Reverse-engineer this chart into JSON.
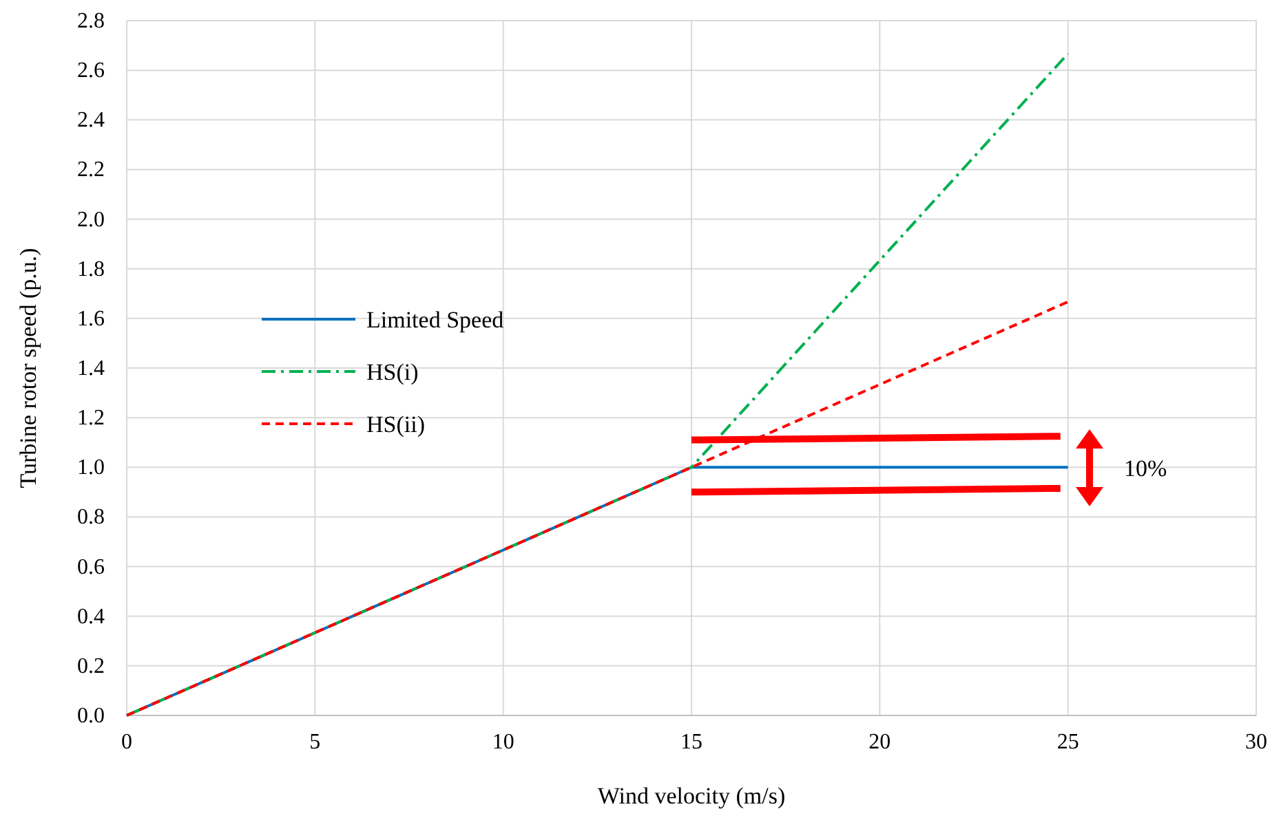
{
  "chart_data": {
    "type": "line",
    "xlabel": "Wind velocity (m/s)",
    "ylabel": "Turbine rotor speed (p.u.)",
    "xlim": [
      0,
      30
    ],
    "xticks": [
      0,
      5,
      10,
      15,
      20,
      25,
      30
    ],
    "ylim": [
      0,
      2.8
    ],
    "yticks": [
      {
        "value": 0,
        "label": "0.0"
      },
      {
        "value": 0.2,
        "label": "0.2"
      },
      {
        "value": 0.4,
        "label": "0.4"
      },
      {
        "value": 0.6,
        "label": "0.6"
      },
      {
        "value": 0.8,
        "label": "0.8"
      },
      {
        "value": 1,
        "label": "1.0"
      },
      {
        "value": 1.2,
        "label": "1.2"
      },
      {
        "value": 1.4,
        "label": "1.4"
      },
      {
        "value": 1.6,
        "label": "1.6"
      },
      {
        "value": 1.8,
        "label": "1.8"
      },
      {
        "value": 2,
        "label": "2.0"
      },
      {
        "value": 2.2,
        "label": "2.2"
      },
      {
        "value": 2.4,
        "label": "2.4"
      },
      {
        "value": 2.6,
        "label": "2.6"
      },
      {
        "value": 2.8,
        "label": "2.8"
      }
    ],
    "grid": true,
    "legend": "left",
    "marker": "none",
    "series": [
      {
        "name": "Limited Speed",
        "color": "#0070c0",
        "line_style": "solid",
        "x": [
          0,
          15,
          25
        ],
        "values": [
          0,
          1,
          1
        ]
      },
      {
        "name": "HS(i)",
        "color": "#00b050",
        "line_style": "dashdot",
        "x": [
          0,
          15,
          25
        ],
        "values": [
          0,
          1,
          2.667
        ]
      },
      {
        "name": "HS(ii)",
        "color": "#ff0000",
        "line_style": "dashed",
        "x": [
          0,
          15,
          25
        ],
        "values": [
          0,
          1,
          1.667
        ]
      },
      {
        "color": "#ff0000",
        "line_style": "solid",
        "x": [
          15,
          24.8
        ],
        "values": [
          1.11,
          1.125
        ]
      },
      {
        "color": "#ff0000",
        "line_style": "solid",
        "x": [
          15,
          24.8
        ],
        "values": [
          0.9,
          0.915
        ]
      }
    ],
    "annotations": [
      "10%"
    ]
  }
}
